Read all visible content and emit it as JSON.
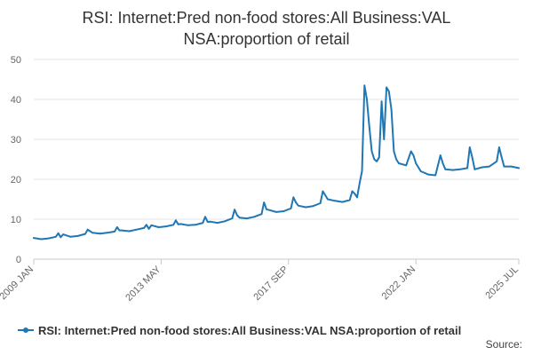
{
  "colors": {
    "series": "#1f77b4",
    "grid": "#e6e6e6",
    "text": "#666666"
  },
  "source_label": "Source:",
  "chart_data": {
    "type": "line",
    "title_line1": "RSI: Internet:Pred non-food stores:All Business:VAL",
    "title_line2": "NSA:proportion of retail",
    "ylim": [
      0,
      50
    ],
    "yticks": [
      0,
      10,
      20,
      30,
      40,
      50
    ],
    "xlim": [
      "2009-01",
      "2025-07"
    ],
    "xticks": [
      "2009 JAN",
      "2013 MAY",
      "2017 SEP",
      "2022 JAN",
      "2025 JUL"
    ],
    "grid": true,
    "legend_position": "bottom",
    "series": [
      {
        "name": "RSI: Internet:Pred non-food stores:All Business:VAL NSA:proportion of retail",
        "points": [
          [
            "2009-01",
            5.3
          ],
          [
            "2009-04",
            5.0
          ],
          [
            "2009-07",
            5.2
          ],
          [
            "2009-10",
            5.6
          ],
          [
            "2009-11",
            6.5
          ],
          [
            "2009-12",
            5.5
          ],
          [
            "2010-01",
            6.2
          ],
          [
            "2010-04",
            5.6
          ],
          [
            "2010-07",
            5.8
          ],
          [
            "2010-10",
            6.3
          ],
          [
            "2010-11",
            7.4
          ],
          [
            "2010-12",
            7.0
          ],
          [
            "2011-01",
            6.6
          ],
          [
            "2011-04",
            6.4
          ],
          [
            "2011-07",
            6.6
          ],
          [
            "2011-10",
            6.9
          ],
          [
            "2011-11",
            8.0
          ],
          [
            "2011-12",
            7.2
          ],
          [
            "2012-01",
            7.2
          ],
          [
            "2012-04",
            7.0
          ],
          [
            "2012-07",
            7.4
          ],
          [
            "2012-10",
            7.8
          ],
          [
            "2012-11",
            8.6
          ],
          [
            "2012-12",
            7.6
          ],
          [
            "2013-01",
            8.5
          ],
          [
            "2013-04",
            8.0
          ],
          [
            "2013-07",
            8.2
          ],
          [
            "2013-10",
            8.6
          ],
          [
            "2013-11",
            9.7
          ],
          [
            "2013-12",
            8.7
          ],
          [
            "2014-01",
            8.8
          ],
          [
            "2014-04",
            8.5
          ],
          [
            "2014-07",
            8.6
          ],
          [
            "2014-10",
            9.1
          ],
          [
            "2014-11",
            10.6
          ],
          [
            "2014-12",
            9.3
          ],
          [
            "2015-01",
            9.4
          ],
          [
            "2015-04",
            9.1
          ],
          [
            "2015-07",
            9.5
          ],
          [
            "2015-10",
            10.2
          ],
          [
            "2015-11",
            12.4
          ],
          [
            "2015-12",
            11.0
          ],
          [
            "2016-01",
            10.4
          ],
          [
            "2016-04",
            10.2
          ],
          [
            "2016-07",
            10.6
          ],
          [
            "2016-10",
            11.3
          ],
          [
            "2016-11",
            14.2
          ],
          [
            "2016-12",
            12.5
          ],
          [
            "2017-01",
            12.3
          ],
          [
            "2017-04",
            11.8
          ],
          [
            "2017-07",
            12.0
          ],
          [
            "2017-10",
            12.7
          ],
          [
            "2017-11",
            15.5
          ],
          [
            "2017-12",
            14.2
          ],
          [
            "2018-01",
            13.4
          ],
          [
            "2018-04",
            13.0
          ],
          [
            "2018-07",
            13.3
          ],
          [
            "2018-10",
            14.0
          ],
          [
            "2018-11",
            17.0
          ],
          [
            "2018-12",
            16.0
          ],
          [
            "2019-01",
            15.0
          ],
          [
            "2019-04",
            14.6
          ],
          [
            "2019-07",
            14.3
          ],
          [
            "2019-10",
            14.8
          ],
          [
            "2019-11",
            17.0
          ],
          [
            "2019-12",
            16.4
          ],
          [
            "2020-01",
            15.5
          ],
          [
            "2020-02",
            19.0
          ],
          [
            "2020-03",
            22.0
          ],
          [
            "2020-04",
            43.5
          ],
          [
            "2020-05",
            40.0
          ],
          [
            "2020-06",
            33.0
          ],
          [
            "2020-07",
            27.0
          ],
          [
            "2020-08",
            25.0
          ],
          [
            "2020-09",
            24.5
          ],
          [
            "2020-10",
            25.5
          ],
          [
            "2020-11",
            39.5
          ],
          [
            "2020-12",
            30.0
          ],
          [
            "2021-01",
            43.0
          ],
          [
            "2021-02",
            42.0
          ],
          [
            "2021-03",
            37.5
          ],
          [
            "2021-04",
            27.0
          ],
          [
            "2021-05",
            25.0
          ],
          [
            "2021-06",
            24.0
          ],
          [
            "2021-09",
            23.5
          ],
          [
            "2021-11",
            27.0
          ],
          [
            "2021-12",
            26.0
          ],
          [
            "2022-01",
            24.0
          ],
          [
            "2022-03",
            22.0
          ],
          [
            "2022-06",
            21.2
          ],
          [
            "2022-09",
            21.0
          ],
          [
            "2022-11",
            26.0
          ],
          [
            "2022-12",
            24.0
          ],
          [
            "2023-01",
            22.5
          ],
          [
            "2023-04",
            22.3
          ],
          [
            "2023-07",
            22.5
          ],
          [
            "2023-10",
            22.8
          ],
          [
            "2023-11",
            28.0
          ],
          [
            "2023-12",
            25.5
          ],
          [
            "2024-01",
            22.5
          ],
          [
            "2024-04",
            23.0
          ],
          [
            "2024-07",
            23.2
          ],
          [
            "2024-10",
            24.5
          ],
          [
            "2024-11",
            28.0
          ],
          [
            "2024-12",
            25.5
          ],
          [
            "2025-01",
            23.2
          ],
          [
            "2025-04",
            23.2
          ],
          [
            "2025-07",
            22.8
          ]
        ]
      }
    ]
  }
}
